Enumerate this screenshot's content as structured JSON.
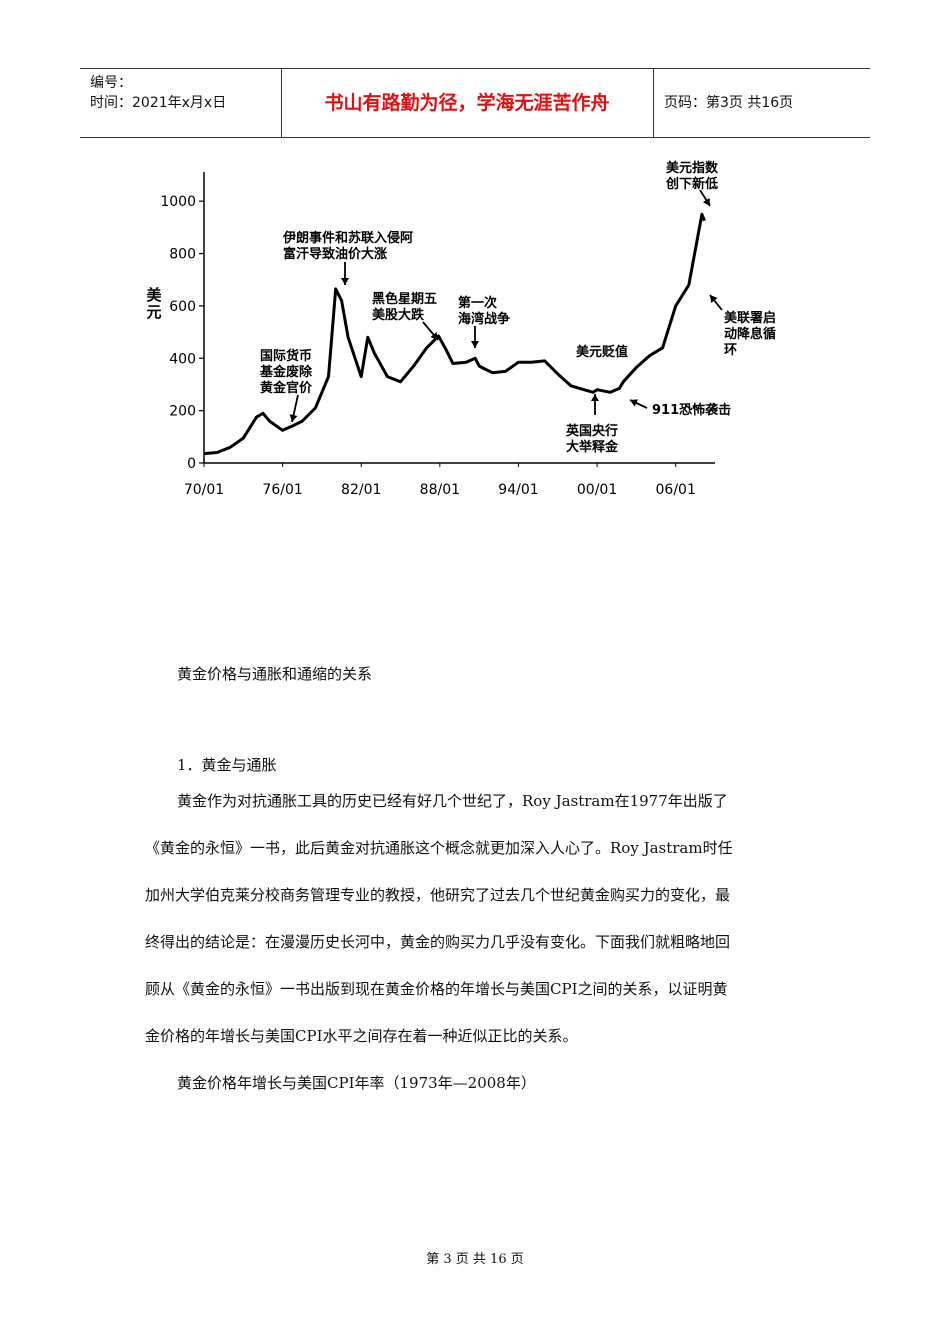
{
  "header": {
    "serial_label": "编号：",
    "time_label": "时间：2021年x月x日",
    "motto": "书山有路勤为径，学海无涯苦作舟",
    "page_info": "页码：第3页 共16页"
  },
  "chart_data": {
    "type": "line",
    "ylabel": "美元",
    "ylim": [
      0,
      1000
    ],
    "yticks": [
      "0",
      "200",
      "400",
      "600",
      "800",
      "1000"
    ],
    "xticks": [
      "70/01",
      "76/01",
      "82/01",
      "88/01",
      "94/01",
      "00/01",
      "06/01"
    ],
    "series": [
      {
        "x": [
          1970.0,
          1971.0,
          1972.0,
          1973.0,
          1974.0,
          1974.5,
          1975.0,
          1976.0,
          1976.7,
          1977.5,
          1978.5,
          1979.5,
          1980.05,
          1980.5,
          1981.0,
          1982.0,
          1982.5,
          1983.0,
          1984.0,
          1985.0,
          1986.0,
          1987.0,
          1987.9,
          1988.5,
          1989.0,
          1990.0,
          1990.7,
          1991.0,
          1992.0,
          1993.0,
          1994.0,
          1995.0,
          1996.0,
          1997.0,
          1998.0,
          1999.0,
          1999.7,
          2000.0,
          2001.0,
          2001.7,
          2002.0,
          2003.0,
          2004.0,
          2005.0,
          2006.0,
          2007.0,
          2008.0,
          2008.2
        ],
        "values": [
          36,
          40,
          60,
          95,
          175,
          190,
          160,
          125,
          140,
          160,
          210,
          330,
          665,
          620,
          480,
          330,
          480,
          420,
          330,
          310,
          370,
          440,
          485,
          430,
          380,
          385,
          400,
          370,
          345,
          350,
          385,
          385,
          390,
          340,
          295,
          280,
          270,
          280,
          270,
          285,
          310,
          365,
          410,
          440,
          600,
          680,
          950,
          925
        ]
      }
    ],
    "annotations": [
      "国际货币基金废除黄金官价",
      "伊朗事件和苏联入侵阿富汗导致油价大涨",
      "黑色星期五美股大跌",
      "第一次海湾战争",
      "美元贬值",
      "英国央行大举释金",
      "911恐怖袭击",
      "美元指数创下新低",
      "美联署启动降息循环"
    ]
  },
  "body": {
    "section_title": "黄金价格与通胀和通缩的关系",
    "item1": "1．黄金与通胀",
    "p1_line1": "黄金作为对抗通胀工具的历史已经有好几个世纪了，Roy Jastram在1977年出版了",
    "p1_line2": "《黄金的永恒》一书，此后黄金对抗通胀这个概念就更加深入人心了。Roy Jastram时任",
    "p1_line3": "加州大学伯克莱分校商务管理专业的教授，他研究了过去几个世纪黄金购买力的变化，最",
    "p1_line4": "终得出的结论是：在漫漫历史长河中，黄金的购买力几乎没有变化。下面我们就粗略地回",
    "p1_line5": "顾从《黄金的永恒》一书出版到现在黄金价格的年增长与美国CPI之间的关系，以证明黄",
    "p1_line6": "金价格的年增长与美国CPI水平之间存在着一种近似正比的关系。",
    "table_caption": "黄金价格年增长与美国CPI年率（1973年—2008年）"
  },
  "footer": {
    "page": "第 3 页 共 16 页"
  }
}
